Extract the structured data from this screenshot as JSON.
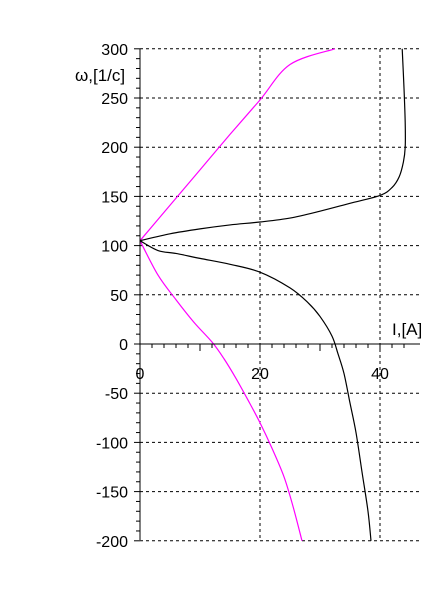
{
  "chart_data": {
    "type": "line",
    "title": "",
    "xlabel": "I,[A]",
    "ylabel": "ω,[1/c]",
    "xlim": [
      0,
      45
    ],
    "ylim": [
      -200,
      300
    ],
    "x_ticks": [
      0,
      20,
      40
    ],
    "x_tick_labels": [
      "0",
      "20",
      "40"
    ],
    "y_ticks": [
      300,
      250,
      200,
      150,
      100,
      50,
      0,
      -50,
      -100,
      -150,
      -200
    ],
    "y_tick_labels": [
      "300",
      "250",
      "200",
      "150",
      "100",
      "50",
      "0",
      "-50",
      "-100",
      "-150",
      "-200"
    ],
    "grid": true,
    "grid_style": "dashed",
    "legend": "none",
    "series": [
      {
        "color": "#ff00ff",
        "points": [
          [
            0,
            105
          ],
          [
            5,
            141
          ],
          [
            10,
            177
          ],
          [
            15,
            213
          ],
          [
            20,
            248
          ],
          [
            25,
            284
          ],
          [
            32.5,
            300
          ]
        ]
      },
      {
        "color": "#ff00ff",
        "points": [
          [
            0,
            105
          ],
          [
            3,
            70
          ],
          [
            6,
            45
          ],
          [
            9,
            22
          ],
          [
            12,
            2
          ],
          [
            14,
            -15
          ],
          [
            16,
            -35
          ],
          [
            18,
            -57
          ],
          [
            20,
            -80
          ],
          [
            22,
            -106
          ],
          [
            24,
            -135
          ],
          [
            25.5,
            -165
          ],
          [
            27,
            -200
          ]
        ]
      },
      {
        "color": "#000000",
        "points": [
          [
            0,
            105
          ],
          [
            5,
            112
          ],
          [
            10,
            117
          ],
          [
            15,
            121
          ],
          [
            20,
            124
          ],
          [
            25,
            128
          ],
          [
            30,
            135
          ],
          [
            35,
            143
          ],
          [
            40,
            151
          ],
          [
            42,
            159
          ],
          [
            43.2,
            170
          ],
          [
            43.9,
            185
          ],
          [
            44.2,
            200
          ],
          [
            44.2,
            225
          ],
          [
            44,
            260
          ],
          [
            43.7,
            300
          ]
        ]
      },
      {
        "color": "#000000",
        "points": [
          [
            0,
            105
          ],
          [
            3,
            95
          ],
          [
            6,
            92
          ],
          [
            10,
            87
          ],
          [
            15,
            81
          ],
          [
            20,
            73
          ],
          [
            25,
            57
          ],
          [
            28,
            42
          ],
          [
            30,
            28
          ],
          [
            32,
            8
          ],
          [
            33,
            -10
          ],
          [
            34,
            -30
          ],
          [
            35,
            -60
          ],
          [
            36,
            -90
          ],
          [
            37,
            -130
          ],
          [
            38,
            -170
          ],
          [
            38.5,
            -200
          ]
        ]
      }
    ]
  }
}
